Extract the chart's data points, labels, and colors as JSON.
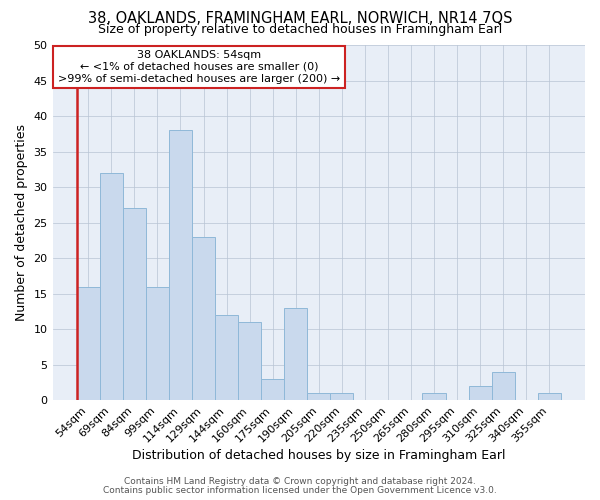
{
  "title": "38, OAKLANDS, FRAMINGHAM EARL, NORWICH, NR14 7QS",
  "subtitle": "Size of property relative to detached houses in Framingham Earl",
  "xlabel": "Distribution of detached houses by size in Framingham Earl",
  "ylabel": "Number of detached properties",
  "categories": [
    "54sqm",
    "69sqm",
    "84sqm",
    "99sqm",
    "114sqm",
    "129sqm",
    "144sqm",
    "160sqm",
    "175sqm",
    "190sqm",
    "205sqm",
    "220sqm",
    "235sqm",
    "250sqm",
    "265sqm",
    "280sqm",
    "295sqm",
    "310sqm",
    "325sqm",
    "340sqm",
    "355sqm"
  ],
  "values": [
    16,
    32,
    27,
    16,
    38,
    23,
    12,
    11,
    3,
    13,
    1,
    1,
    0,
    0,
    0,
    1,
    0,
    2,
    4,
    0,
    1
  ],
  "bar_color": "#c9d9ed",
  "bar_edge_color": "#8fb8d8",
  "background_color": "#e8eef7",
  "ylim": [
    0,
    50
  ],
  "yticks": [
    0,
    5,
    10,
    15,
    20,
    25,
    30,
    35,
    40,
    45,
    50
  ],
  "annotation_title": "38 OAKLANDS: 54sqm",
  "annotation_line1": "← <1% of detached houses are smaller (0)",
  "annotation_line2": ">99% of semi-detached houses are larger (200) →",
  "annotation_box_color": "#ffffff",
  "annotation_box_edge": "#cc2222",
  "red_line_color": "#cc2222",
  "footer1": "Contains HM Land Registry data © Crown copyright and database right 2024.",
  "footer2": "Contains public sector information licensed under the Open Government Licence v3.0.",
  "title_fontsize": 10.5,
  "subtitle_fontsize": 9,
  "xlabel_fontsize": 9,
  "ylabel_fontsize": 9,
  "tick_fontsize": 8,
  "footer_fontsize": 6.5
}
